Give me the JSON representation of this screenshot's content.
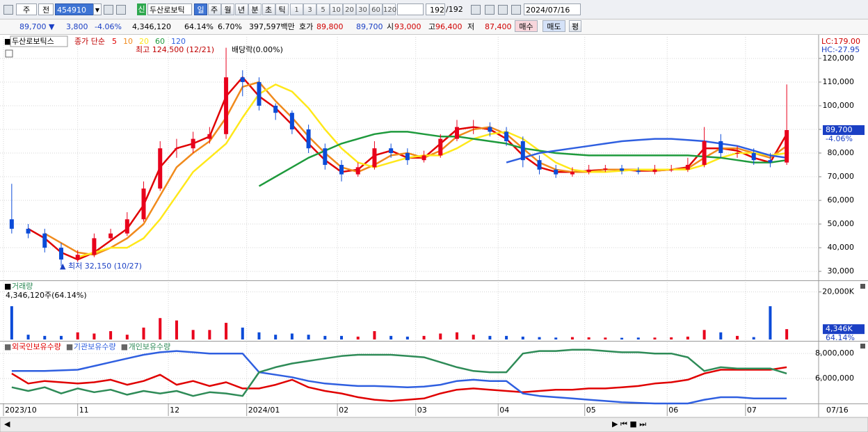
{
  "toolbar": {
    "market": "주",
    "prev": "전",
    "code": "454910",
    "name": "두산로보틱",
    "periods": [
      "일",
      "주",
      "월",
      "년",
      "분",
      "초",
      "틱"
    ],
    "intervals": [
      "1",
      "3",
      "5",
      "10",
      "20",
      "30",
      "60",
      "120"
    ],
    "count": "192",
    "total": "/192",
    "date": "2024/07/16"
  },
  "quote": {
    "price": "89,700 ▼",
    "change": "3,800",
    "change_pct": "-4.06%",
    "volume": "4,346,120",
    "volume_pct": "64.14%",
    "turnover": "6.70%",
    "amount": "397,597백만",
    "bid_label": "호가",
    "ask": "89,800",
    "bid": "89,700",
    "open_label": "시",
    "open": "93,000",
    "high_label": "고",
    "high": "96,400",
    "low_label": "저",
    "low": "87,400",
    "buy": "매수",
    "sell": "매도",
    "avg": "평"
  },
  "chart_data": [
    {
      "type": "candlestick",
      "name": "두산로보틱스",
      "legend_title": "종가 단순",
      "up_color": "#e8001c",
      "down_color": "#0b4bd8",
      "open": [
        52000,
        48000,
        46000,
        40000,
        35000,
        37000,
        44000,
        46000,
        52000,
        65000,
        82000,
        82000,
        86000,
        88000,
        112000,
        110000,
        100000,
        97000,
        90000,
        82000,
        75000,
        71000,
        74000,
        82000,
        80000,
        77000,
        79000,
        86000,
        91000,
        91000,
        89000,
        85000,
        77000,
        73000,
        71000,
        72000,
        73000,
        73500,
        72500,
        72000,
        73000,
        73000,
        75000,
        85000,
        80000,
        80000,
        77000,
        76000
      ],
      "high": [
        67000,
        50000,
        48000,
        42000,
        39000,
        46000,
        48000,
        55000,
        68000,
        85000,
        86000,
        89000,
        91000,
        124500,
        115000,
        112000,
        101000,
        98000,
        92000,
        84000,
        77000,
        76000,
        85000,
        84000,
        82000,
        81000,
        88000,
        94000,
        94000,
        93000,
        91000,
        87000,
        79000,
        75000,
        74000,
        75000,
        75000,
        75000,
        74000,
        75000,
        75000,
        78000,
        91000,
        88000,
        83000,
        82000,
        80000,
        109000
      ],
      "low": [
        46000,
        44000,
        38000,
        32150,
        34000,
        36000,
        43000,
        45000,
        51000,
        64000,
        78000,
        80000,
        84000,
        86000,
        104000,
        98000,
        94000,
        88000,
        80000,
        73000,
        68000,
        70000,
        73000,
        78000,
        75000,
        76000,
        78000,
        85000,
        88000,
        87000,
        83000,
        74000,
        71000,
        69500,
        70000,
        71000,
        72000,
        71000,
        71000,
        71000,
        72000,
        72000,
        74000,
        78000,
        78000,
        75000,
        74000,
        75000
      ],
      "close": [
        48000,
        46000,
        40000,
        35000,
        37000,
        44000,
        46000,
        52000,
        65000,
        82000,
        82000,
        86000,
        88000,
        112000,
        110000,
        100000,
        97000,
        90000,
        82000,
        75000,
        71000,
        74000,
        82000,
        80000,
        77000,
        79000,
        86000,
        91000,
        91000,
        89000,
        85000,
        77000,
        73000,
        71000,
        72000,
        73000,
        73500,
        72500,
        72000,
        73000,
        73000,
        75000,
        85000,
        80000,
        80000,
        77000,
        76000,
        89700
      ],
      "series": [
        {
          "name": "5",
          "color": "#e00000",
          "values": [
            null,
            48000,
            44000,
            38000,
            35000,
            38000,
            43000,
            48000,
            58000,
            74000,
            82000,
            84000,
            87000,
            104000,
            112000,
            104000,
            99000,
            92000,
            84000,
            77000,
            72000,
            73000,
            79000,
            81000,
            78000,
            78000,
            84000,
            90000,
            91000,
            90000,
            86000,
            79000,
            74000,
            72000,
            72000,
            72500,
            73000,
            73000,
            72500,
            72500,
            73000,
            74000,
            82000,
            82000,
            81000,
            78000,
            76000,
            88000
          ]
        },
        {
          "name": "10",
          "color": "#f08a1c",
          "values": [
            null,
            null,
            46000,
            42000,
            38000,
            37000,
            40000,
            44000,
            50000,
            62000,
            74000,
            80000,
            85000,
            95000,
            108000,
            110000,
            102000,
            95000,
            87000,
            80000,
            74000,
            72000,
            75000,
            79000,
            80000,
            78000,
            81000,
            87000,
            90000,
            91000,
            88000,
            82000,
            76000,
            73000,
            72000,
            72000,
            73000,
            73000,
            73000,
            72500,
            73000,
            73500,
            78000,
            82000,
            82000,
            80000,
            78000,
            83000
          ]
        },
        {
          "name": "20",
          "color": "#ffe81a",
          "values": [
            null,
            null,
            null,
            null,
            36000,
            38000,
            40000,
            40000,
            44000,
            52000,
            62000,
            72000,
            78000,
            84000,
            95000,
            105000,
            109000,
            106000,
            99000,
            90000,
            82000,
            76000,
            74000,
            76000,
            78000,
            79000,
            79000,
            82000,
            86000,
            88000,
            89000,
            86000,
            81000,
            76000,
            73000,
            72000,
            72000,
            72500,
            73000,
            73000,
            73000,
            73000,
            75000,
            78000,
            80000,
            80000,
            79000,
            80000
          ]
        },
        {
          "name": "60",
          "color": "#1e9a3c",
          "values": [
            null,
            null,
            null,
            null,
            null,
            null,
            null,
            null,
            null,
            null,
            null,
            null,
            null,
            null,
            null,
            66000,
            70000,
            74000,
            78000,
            81000,
            84000,
            86000,
            88000,
            89000,
            89000,
            88000,
            87000,
            87000,
            86000,
            85000,
            84000,
            82000,
            81000,
            80000,
            79500,
            79000,
            79000,
            79000,
            79000,
            79000,
            79000,
            79000,
            78500,
            78000,
            77000,
            76000,
            76000,
            77000
          ]
        },
        {
          "name": "120",
          "color": "#2f5fe0",
          "values": [
            null,
            null,
            null,
            null,
            null,
            null,
            null,
            null,
            null,
            null,
            null,
            null,
            null,
            null,
            null,
            null,
            null,
            null,
            null,
            null,
            null,
            null,
            null,
            null,
            null,
            null,
            null,
            null,
            null,
            null,
            76000,
            78000,
            80000,
            81000,
            82000,
            83000,
            84000,
            85000,
            85500,
            86000,
            86000,
            85500,
            85000,
            84000,
            83000,
            81000,
            79000,
            78000
          ]
        }
      ],
      "annotations": [
        "최고 124,500 (12/21)",
        "최저 32,150 (10/27)",
        "배당락(0.00%)"
      ],
      "lc": "LC:179.00",
      "hc": "HC:-27.95",
      "last_label": "89,700",
      "last_change": "-4.06%",
      "xlim": [
        0,
        48
      ],
      "ylim": [
        26200,
        129100
      ],
      "yticks": [
        {
          "value": 30000,
          "label": "30,000"
        },
        {
          "value": 40000,
          "label": "40,000"
        },
        {
          "value": 50000,
          "label": "50,000"
        },
        {
          "value": 60000,
          "label": "60,000"
        },
        {
          "value": 70000,
          "label": "70,000"
        },
        {
          "value": 80000,
          "label": "80,000"
        },
        {
          "value": 90000,
          "label": "90,000"
        },
        {
          "value": 100000,
          "label": "100,000"
        },
        {
          "value": 110000,
          "label": "110,000"
        },
        {
          "value": 120000,
          "label": "120,000"
        }
      ],
      "grid": true
    },
    {
      "type": "bar",
      "title": "거래량",
      "subtitle": "4,346,120주(64.14%)",
      "values": [
        14000,
        2000,
        1500,
        1500,
        3000,
        2500,
        3500,
        2000,
        5000,
        9000,
        8000,
        4000,
        4000,
        7000,
        5000,
        3000,
        2000,
        2500,
        2000,
        1500,
        1500,
        1200,
        3500,
        1500,
        1200,
        1500,
        2500,
        3000,
        2000,
        1500,
        1500,
        1200,
        1000,
        800,
        1000,
        900,
        800,
        700,
        800,
        800,
        900,
        1200,
        4000,
        3000,
        1500,
        1000,
        14000,
        4346
      ],
      "last_label": "4,346K",
      "last_pct": "64.14%",
      "xlim": [
        0,
        48
      ],
      "ylim": [
        0,
        24000
      ],
      "yticks": [
        {
          "value": 20000,
          "label": "20,000K"
        }
      ],
      "grid": true
    },
    {
      "type": "line",
      "series": [
        {
          "name": "외국인보유수량",
          "color": "#e00000",
          "values": [
            6400000,
            5600000,
            5800000,
            5700000,
            5600000,
            5700000,
            5900000,
            5500000,
            5800000,
            6300000,
            5500000,
            5800000,
            5400000,
            5700000,
            5200000,
            5200000,
            5500000,
            5900000,
            5300000,
            5000000,
            4800000,
            4500000,
            4300000,
            4200000,
            4300000,
            4400000,
            4800000,
            5100000,
            5200000,
            5100000,
            5000000,
            4900000,
            5000000,
            5100000,
            5100000,
            5200000,
            5200000,
            5300000,
            5400000,
            5600000,
            5700000,
            5900000,
            6400000,
            6700000,
            6700000,
            6700000,
            6700000,
            6900000
          ]
        },
        {
          "name": "기관보유수량",
          "color": "#2f5fe0",
          "values": [
            6600000,
            6600000,
            6600000,
            6650000,
            6700000,
            7000000,
            7300000,
            7600000,
            7900000,
            8100000,
            8200000,
            8100000,
            8000000,
            8000000,
            8000000,
            6500000,
            6300000,
            6100000,
            5800000,
            5600000,
            5500000,
            5400000,
            5400000,
            5350000,
            5300000,
            5350000,
            5500000,
            5800000,
            5900000,
            5800000,
            5800000,
            4800000,
            4600000,
            4500000,
            4400000,
            4300000,
            4200000,
            4100000,
            4050000,
            4000000,
            4000000,
            4000000,
            4300000,
            4500000,
            4500000,
            4400000,
            4400000,
            4400000
          ]
        },
        {
          "name": "개인보유수량",
          "color": "#2e8b57",
          "values": [
            5300000,
            5000000,
            5300000,
            4800000,
            5200000,
            4900000,
            5100000,
            4700000,
            5000000,
            4800000,
            5000000,
            4600000,
            4900000,
            4800000,
            4600000,
            6500000,
            6900000,
            7200000,
            7400000,
            7600000,
            7800000,
            7900000,
            7900000,
            7900000,
            7800000,
            7700000,
            7300000,
            6900000,
            6600000,
            6500000,
            6500000,
            8000000,
            8200000,
            8200000,
            8300000,
            8300000,
            8200000,
            8100000,
            8100000,
            8000000,
            8000000,
            7700000,
            6600000,
            6900000,
            6800000,
            6800000,
            6800000,
            6400000
          ]
        }
      ],
      "xlim": [
        0,
        48
      ],
      "ylim": [
        4000000,
        8900000
      ],
      "yticks": [
        {
          "value": 6000000,
          "label": "6,000,000"
        },
        {
          "value": 8000000,
          "label": "8,000,000"
        }
      ],
      "xticks": [
        {
          "value": 0,
          "label": "2023/10"
        },
        {
          "value": 4.5,
          "label": "11"
        },
        {
          "value": 10,
          "label": "12"
        },
        {
          "value": 14.75,
          "label": "2024/01"
        },
        {
          "value": 20.25,
          "label": "02"
        },
        {
          "value": 25,
          "label": "03"
        },
        {
          "value": 30,
          "label": "04"
        },
        {
          "value": 35.25,
          "label": "05"
        },
        {
          "value": 40.25,
          "label": "06"
        },
        {
          "value": 45,
          "label": "07"
        }
      ],
      "end_label": "07/16",
      "grid": true
    }
  ]
}
